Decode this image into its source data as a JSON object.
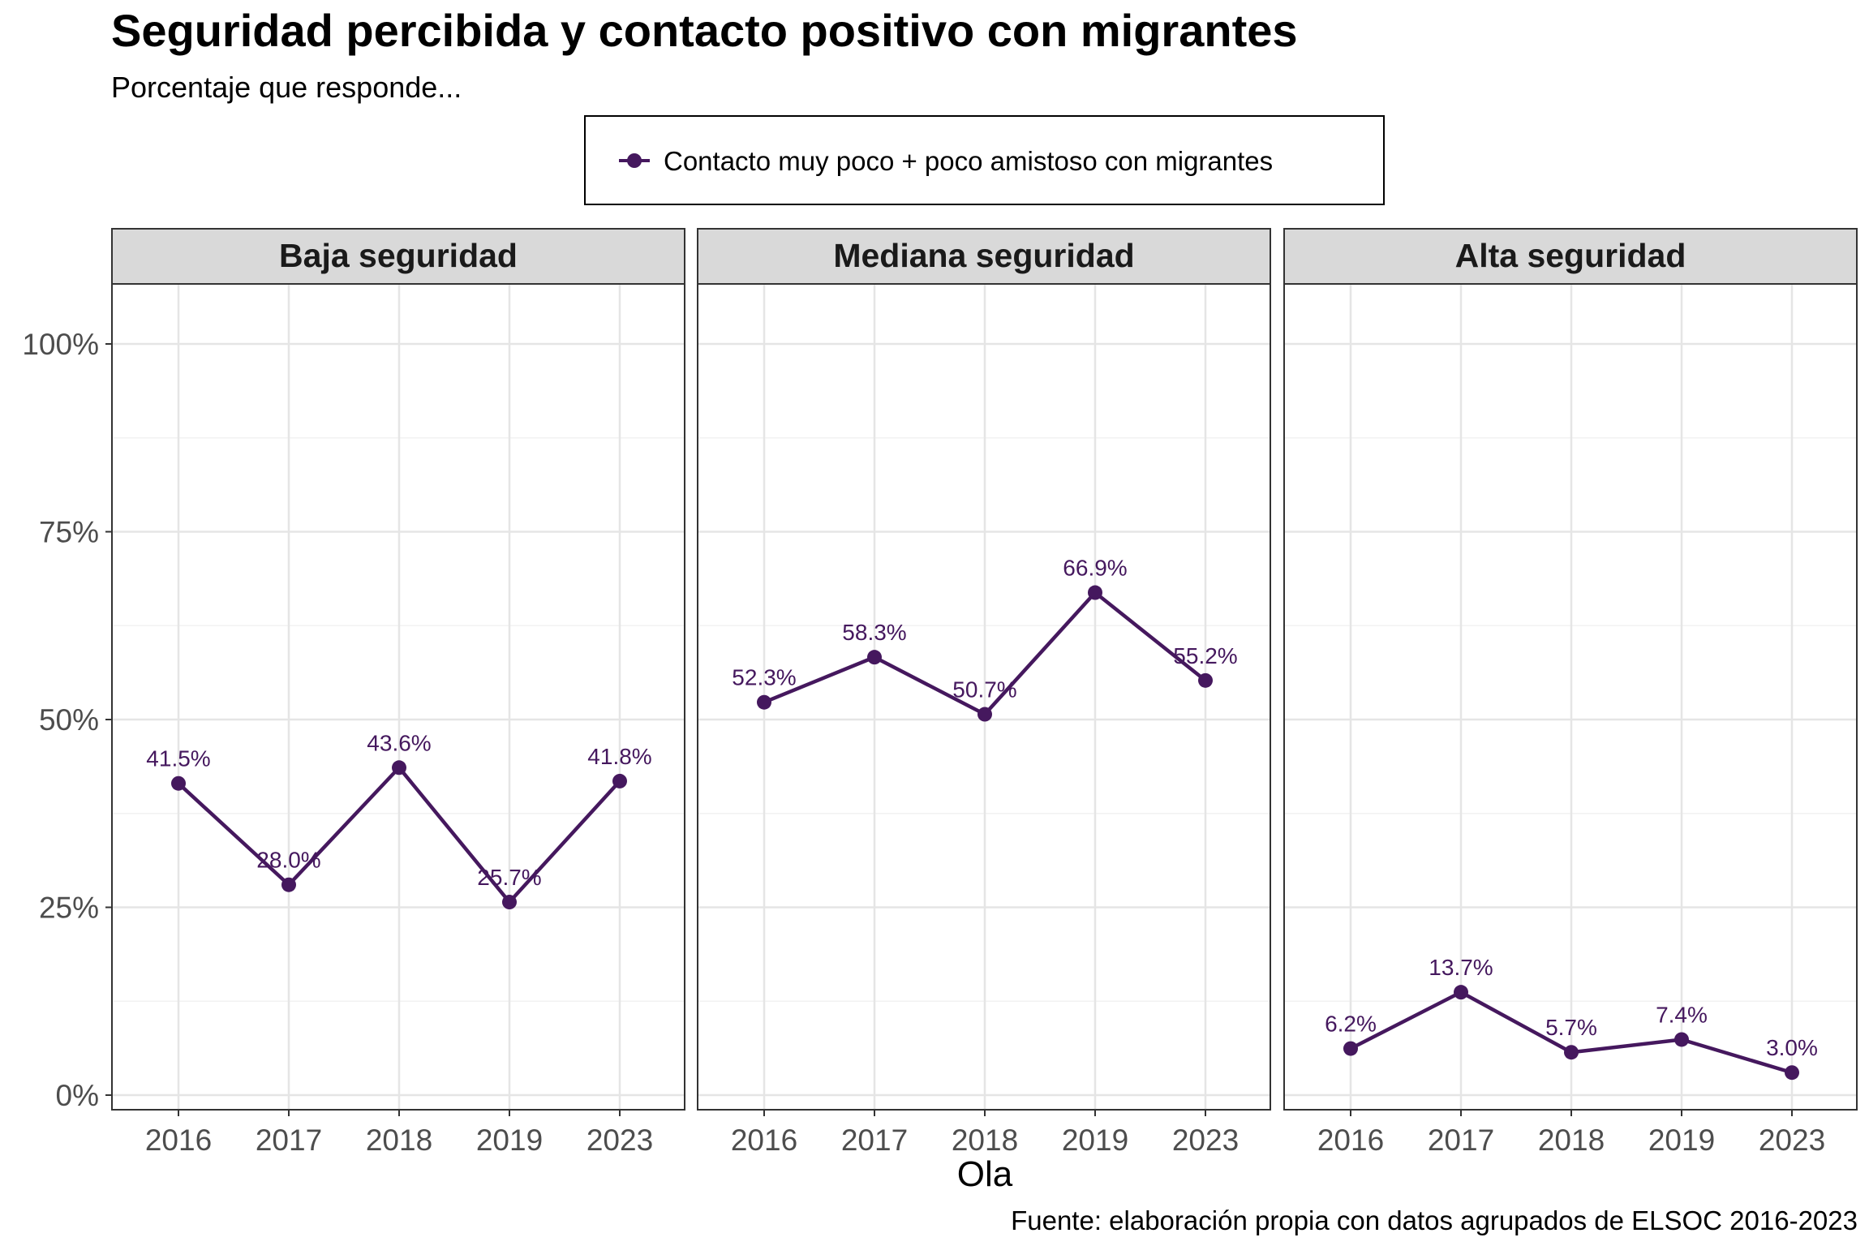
{
  "chart_data": {
    "type": "line",
    "title": "Seguridad percibida y contacto positivo con migrantes",
    "subtitle": "Porcentaje que responde...",
    "xlabel": "Ola",
    "ylabel": "",
    "caption": "Fuente: elaboración propia con datos agrupados de ELSOC 2016-2023",
    "legend": {
      "position": "top",
      "entries": [
        "Contacto muy poco + poco amistoso con migrantes"
      ]
    },
    "categories": [
      "2016",
      "2017",
      "2018",
      "2019",
      "2023"
    ],
    "ylim": [
      0,
      100
    ],
    "yticks": [
      0,
      25,
      50,
      75,
      100
    ],
    "ytick_labels": [
      "0%",
      "25%",
      "50%",
      "75%",
      "100%"
    ],
    "grid": true,
    "color": "#45185E",
    "panels": [
      {
        "name": "Baja seguridad",
        "series": [
          {
            "name": "Contacto muy poco + poco amistoso con migrantes",
            "values": [
              41.5,
              28.0,
              43.6,
              25.7,
              41.8
            ]
          }
        ],
        "labels": [
          "41.5%",
          "28.0%",
          "43.6%",
          "25.7%",
          "41.8%"
        ]
      },
      {
        "name": "Mediana seguridad",
        "series": [
          {
            "name": "Contacto muy poco + poco amistoso con migrantes",
            "values": [
              52.3,
              58.3,
              50.7,
              66.9,
              55.2
            ]
          }
        ],
        "labels": [
          "52.3%",
          "58.3%",
          "50.7%",
          "66.9%",
          "55.2%"
        ]
      },
      {
        "name": "Alta seguridad",
        "series": [
          {
            "name": "Contacto muy poco + poco amistoso con migrantes",
            "values": [
              6.2,
              13.7,
              5.7,
              7.4,
              3.0
            ]
          }
        ],
        "labels": [
          "6.2%",
          "13.7%",
          "5.7%",
          "7.4%",
          "3.0%"
        ]
      }
    ]
  }
}
